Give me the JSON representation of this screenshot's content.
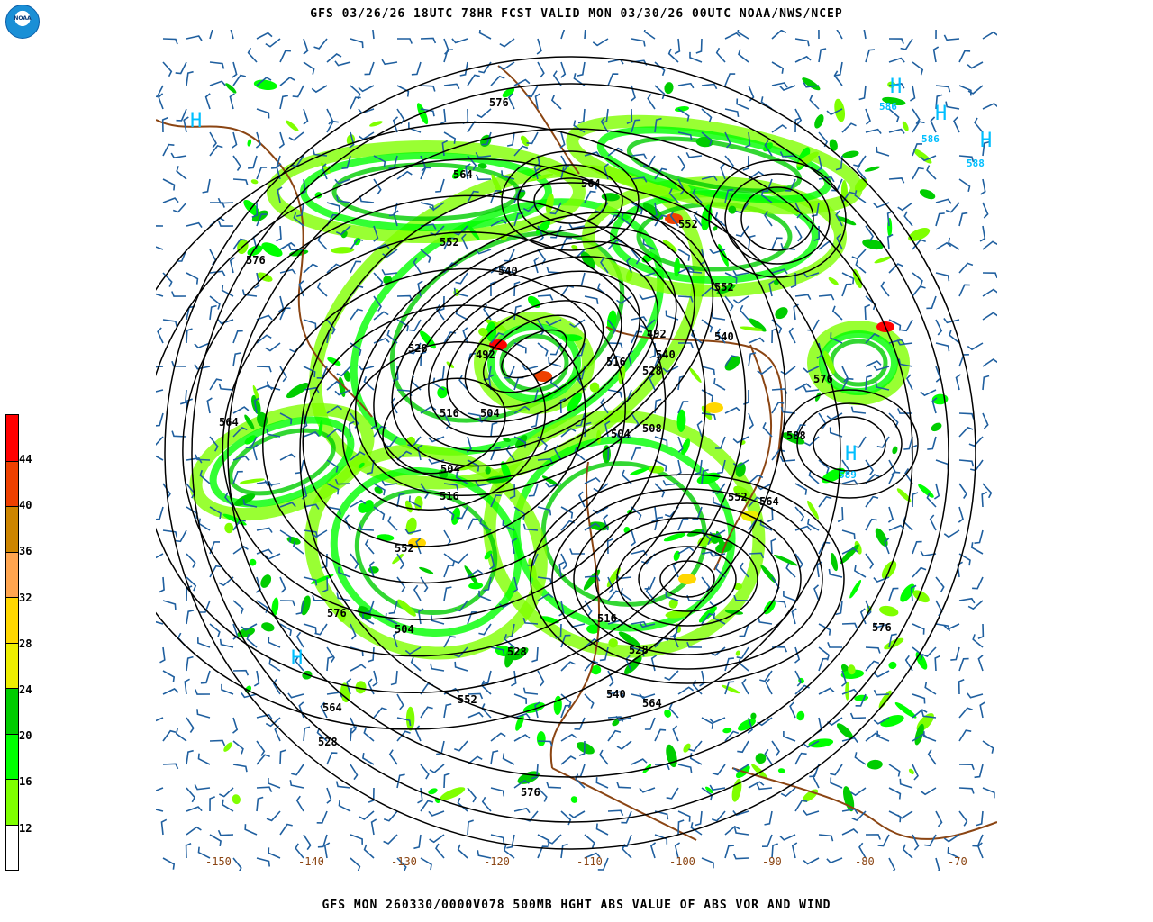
{
  "header": {
    "title": "GFS 03/26/26 18UTC 78HR FCST VALID MON 03/30/26 00UTC NOAA/NWS/NCEP",
    "logo_text": "NOAA"
  },
  "footer": {
    "caption": "GFS MON 260330/0000V078 500MB HGHT ABS VALUE OF ABS VOR AND WIND"
  },
  "colorbar": {
    "colors": [
      "#ff0000",
      "#ee4000",
      "#cd8500",
      "#ffa54f",
      "#ffd700",
      "#eeee00",
      "#00cd00",
      "#00ff00",
      "#7fff00",
      "#ffffff"
    ],
    "labels": [
      "44",
      "40",
      "36",
      "32",
      "28",
      "24",
      "20",
      "16",
      "12"
    ]
  },
  "map": {
    "longitude_labels": [
      "-150",
      "-140",
      "-130",
      "-120",
      "-110",
      "-100",
      "-90",
      "-80",
      "-70"
    ],
    "height_contour_labels": [
      "576",
      "576",
      "564",
      "552",
      "540",
      "528",
      "516",
      "504",
      "492",
      "564",
      "552",
      "552",
      "540",
      "528",
      "516",
      "504",
      "508",
      "576",
      "588",
      "564",
      "552",
      "540",
      "528",
      "516",
      "504",
      "492",
      "576",
      "564",
      "552",
      "540",
      "528",
      "576",
      "564",
      "552",
      "528",
      "516",
      "504",
      "576",
      "564"
    ],
    "high_labels": [
      "H",
      "H",
      "H",
      "H",
      "H",
      "H"
    ],
    "high_values": [
      "586",
      "586",
      "588",
      "589"
    ],
    "colors": {
      "contour": "#000000",
      "coast": "#8b4513",
      "wind_barb": "#1f5f9f",
      "high": "#00bfff",
      "low_marker": "#ff0000"
    }
  }
}
